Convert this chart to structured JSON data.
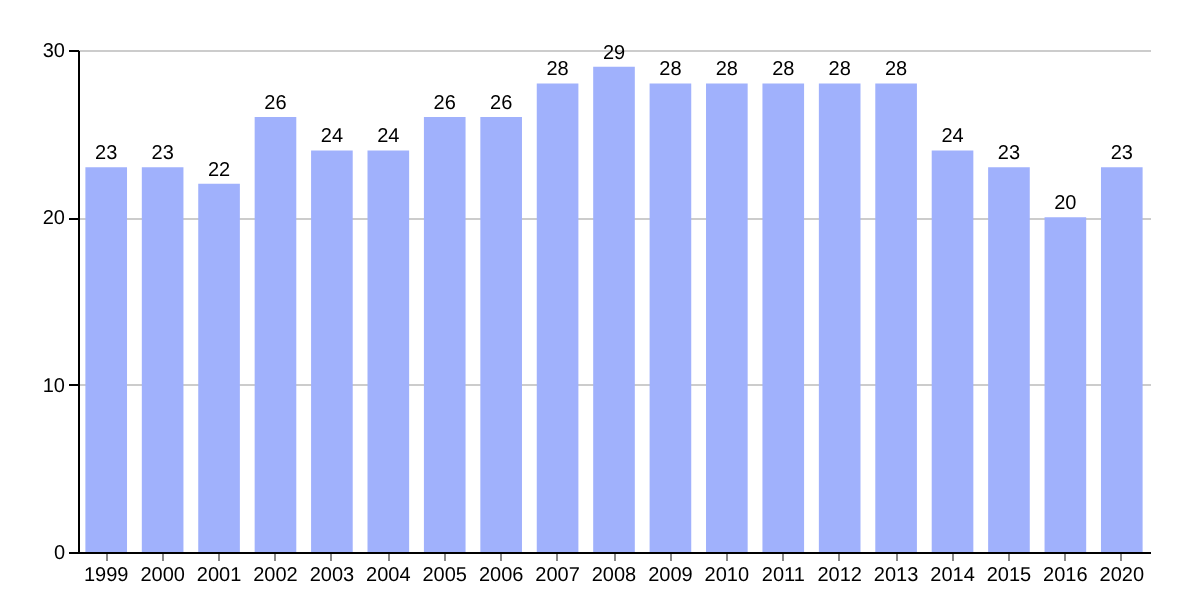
{
  "chart_data": {
    "type": "bar",
    "categories": [
      "1999",
      "2000",
      "2001",
      "2002",
      "2003",
      "2004",
      "2005",
      "2006",
      "2007",
      "2008",
      "2009",
      "2010",
      "2011",
      "2012",
      "2013",
      "2014",
      "2015",
      "2016",
      "2020"
    ],
    "values": [
      23,
      23,
      22,
      26,
      24,
      24,
      26,
      26,
      28,
      29,
      28,
      28,
      28,
      28,
      28,
      24,
      23,
      20,
      23
    ],
    "color": "#a0b1fc",
    "ylim": [
      0,
      30
    ],
    "yticks": [
      0,
      10,
      20,
      30
    ],
    "grid": "y",
    "data_labels": true
  }
}
